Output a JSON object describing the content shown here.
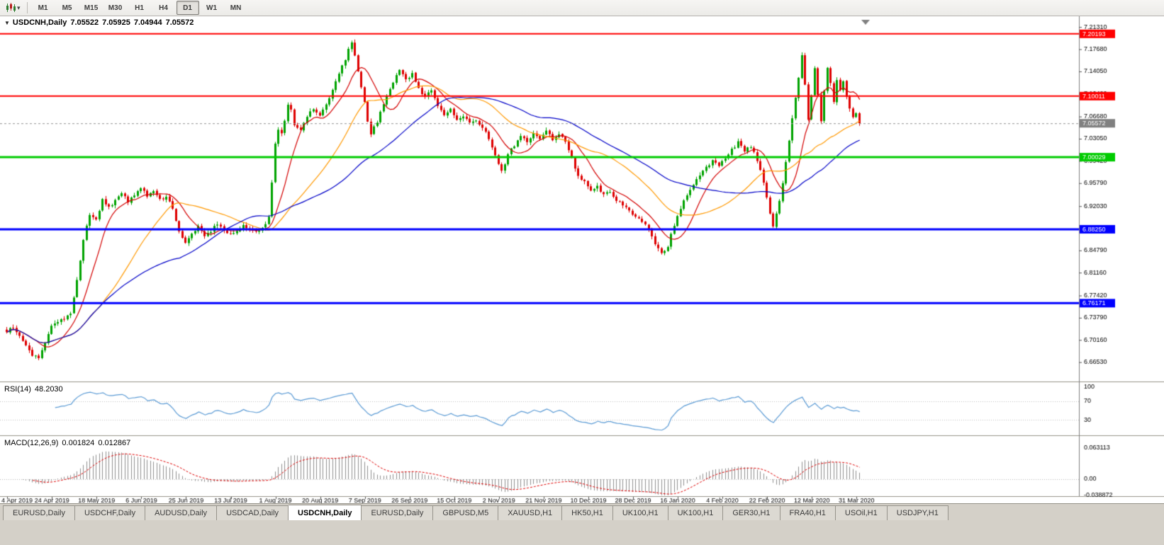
{
  "toolbar": {
    "chart_type_icon": "candlestick-chart-icon",
    "dropdown_icon": "chevron-down-icon",
    "timeframes": [
      {
        "label": "M1",
        "active": false
      },
      {
        "label": "M5",
        "active": false
      },
      {
        "label": "M15",
        "active": false
      },
      {
        "label": "M30",
        "active": false
      },
      {
        "label": "H1",
        "active": false
      },
      {
        "label": "H4",
        "active": false
      },
      {
        "label": "D1",
        "active": true
      },
      {
        "label": "W1",
        "active": false
      },
      {
        "label": "MN",
        "active": false
      }
    ]
  },
  "tabs": [
    {
      "label": "EURUSD,Daily",
      "active": false
    },
    {
      "label": "USDCHF,Daily",
      "active": false
    },
    {
      "label": "AUDUSD,Daily",
      "active": false
    },
    {
      "label": "USDCAD,Daily",
      "active": false
    },
    {
      "label": "USDCNH,Daily",
      "active": true
    },
    {
      "label": "EURUSD,Daily",
      "active": false
    },
    {
      "label": "GBPUSD,M5",
      "active": false
    },
    {
      "label": "XAUUSD,H1",
      "active": false
    },
    {
      "label": "HK50,H1",
      "active": false
    },
    {
      "label": "UK100,H1",
      "active": false
    },
    {
      "label": "UK100,H1",
      "active": false
    },
    {
      "label": "GER30,H1",
      "active": false
    },
    {
      "label": "FRA40,H1",
      "active": false
    },
    {
      "label": "USOil,H1",
      "active": false
    },
    {
      "label": "USDJPY,H1",
      "active": false
    }
  ],
  "chart_data": {
    "type": "candlestick",
    "symbol": "USDCNH",
    "timeframe": "Daily",
    "title": "USDCNH,Daily",
    "ohlc": {
      "open": "7.05522",
      "high": "7.05925",
      "low": "7.04944",
      "close": "7.05572"
    },
    "colors": {
      "bull": "#00A300",
      "bear": "#DE0000",
      "background": "#FFFFFF",
      "axis_line": "#808080",
      "axis_text": "#000000",
      "current_price_line": "#909090"
    },
    "price_axis_range": [
      7.226,
      6.636
    ],
    "y_ticks": [
      7.2131,
      7.1768,
      7.1405,
      7.1042,
      7.0668,
      7.0305,
      6.9942,
      6.9579,
      6.9203,
      6.8841,
      6.8479,
      6.8116,
      6.7742,
      6.7379,
      6.7016,
      6.6653
    ],
    "hlines": [
      {
        "price": 7.20193,
        "color": "#FF0000",
        "width": 2,
        "label": "7.20193"
      },
      {
        "price": 7.10011,
        "color": "#FF0000",
        "width": 2,
        "label": "7.10011"
      },
      {
        "price": 7.00029,
        "color": "#00CC00",
        "width": 3,
        "label": "7.00029"
      },
      {
        "price": 6.8825,
        "color": "#0000FF",
        "width": 3,
        "label": "6.88250"
      },
      {
        "price": 6.76171,
        "color": "#0000FF",
        "width": 3,
        "label": "6.76171"
      }
    ],
    "current_price": {
      "value": 7.05572,
      "label": "7.05572",
      "badge_color": "#808080"
    },
    "moving_averages": [
      {
        "period": 10,
        "color": "#D40000"
      },
      {
        "period": 30,
        "color": "#FF9900"
      },
      {
        "period": 55,
        "color": "#0000C8"
      }
    ],
    "x_labels": [
      "4 Apr 2019",
      "24 Apr 2019",
      "18 May 2019",
      "6 Jun 2019",
      "25 Jun 2019",
      "13 Jul 2019",
      "1 Aug 2019",
      "20 Aug 2019",
      "7 Sep 2019",
      "26 Sep 2019",
      "15 Oct 2019",
      "2 Nov 2019",
      "21 Nov 2019",
      "10 Dec 2019",
      "28 Dec 2019",
      "16 Jan 2020",
      "4 Feb 2020",
      "22 Feb 2020",
      "12 Mar 2020",
      "31 Mar 2020"
    ],
    "label_candle_step": 14,
    "num_candles": 268,
    "anchors": [
      [
        0,
        6.716
      ],
      [
        2,
        6.722
      ],
      [
        4,
        6.706
      ],
      [
        6,
        6.695
      ],
      [
        8,
        6.678
      ],
      [
        10,
        6.671
      ],
      [
        12,
        6.698
      ],
      [
        14,
        6.725
      ],
      [
        16,
        6.73
      ],
      [
        18,
        6.737
      ],
      [
        20,
        6.747
      ],
      [
        22,
        6.798
      ],
      [
        24,
        6.866
      ],
      [
        26,
        6.908
      ],
      [
        28,
        6.898
      ],
      [
        30,
        6.93
      ],
      [
        32,
        6.918
      ],
      [
        34,
        6.93
      ],
      [
        36,
        6.942
      ],
      [
        38,
        6.928
      ],
      [
        40,
        6.94
      ],
      [
        42,
        6.948
      ],
      [
        44,
        6.938
      ],
      [
        46,
        6.945
      ],
      [
        48,
        6.93
      ],
      [
        50,
        6.938
      ],
      [
        52,
        6.915
      ],
      [
        54,
        6.88
      ],
      [
        56,
        6.858
      ],
      [
        58,
        6.874
      ],
      [
        60,
        6.888
      ],
      [
        62,
        6.872
      ],
      [
        64,
        6.88
      ],
      [
        66,
        6.892
      ],
      [
        68,
        6.878
      ],
      [
        70,
        6.874
      ],
      [
        72,
        6.882
      ],
      [
        74,
        6.888
      ],
      [
        76,
        6.883
      ],
      [
        78,
        6.879
      ],
      [
        80,
        6.884
      ],
      [
        82,
        6.902
      ],
      [
        83,
        6.96
      ],
      [
        84,
        7.022
      ],
      [
        85,
        7.046
      ],
      [
        86,
        7.038
      ],
      [
        87,
        7.062
      ],
      [
        88,
        7.088
      ],
      [
        89,
        7.078
      ],
      [
        90,
        7.052
      ],
      [
        92,
        7.046
      ],
      [
        94,
        7.066
      ],
      [
        96,
        7.08
      ],
      [
        98,
        7.068
      ],
      [
        100,
        7.086
      ],
      [
        102,
        7.112
      ],
      [
        104,
        7.138
      ],
      [
        106,
        7.16
      ],
      [
        107,
        7.178
      ],
      [
        108,
        7.186
      ],
      [
        109,
        7.166
      ],
      [
        110,
        7.142
      ],
      [
        112,
        7.092
      ],
      [
        113,
        7.058
      ],
      [
        114,
        7.04
      ],
      [
        116,
        7.058
      ],
      [
        118,
        7.088
      ],
      [
        120,
        7.11
      ],
      [
        122,
        7.134
      ],
      [
        123,
        7.145
      ],
      [
        125,
        7.126
      ],
      [
        127,
        7.138
      ],
      [
        129,
        7.112
      ],
      [
        131,
        7.098
      ],
      [
        133,
        7.11
      ],
      [
        135,
        7.086
      ],
      [
        137,
        7.07
      ],
      [
        139,
        7.078
      ],
      [
        141,
        7.06
      ],
      [
        143,
        7.068
      ],
      [
        145,
        7.056
      ],
      [
        147,
        7.062
      ],
      [
        149,
        7.048
      ],
      [
        151,
        7.032
      ],
      [
        153,
        7.002
      ],
      [
        155,
        6.976
      ],
      [
        157,
        7.006
      ],
      [
        159,
        7.02
      ],
      [
        161,
        7.034
      ],
      [
        163,
        7.026
      ],
      [
        165,
        7.038
      ],
      [
        167,
        7.032
      ],
      [
        169,
        7.042
      ],
      [
        171,
        7.03
      ],
      [
        173,
        7.036
      ],
      [
        175,
        7.028
      ],
      [
        177,
        6.998
      ],
      [
        179,
        6.968
      ],
      [
        181,
        6.96
      ],
      [
        183,
        6.948
      ],
      [
        185,
        6.953
      ],
      [
        187,
        6.938
      ],
      [
        189,
        6.943
      ],
      [
        191,
        6.93
      ],
      [
        193,
        6.922
      ],
      [
        195,
        6.912
      ],
      [
        197,
        6.905
      ],
      [
        199,
        6.895
      ],
      [
        201,
        6.882
      ],
      [
        203,
        6.858
      ],
      [
        205,
        6.843
      ],
      [
        207,
        6.856
      ],
      [
        209,
        6.89
      ],
      [
        211,
        6.916
      ],
      [
        213,
        6.94
      ],
      [
        215,
        6.956
      ],
      [
        217,
        6.97
      ],
      [
        219,
        6.984
      ],
      [
        221,
        6.994
      ],
      [
        223,
        6.988
      ],
      [
        225,
        7.0
      ],
      [
        227,
        7.012
      ],
      [
        229,
        7.024
      ],
      [
        231,
        7.01
      ],
      [
        233,
        7.018
      ],
      [
        235,
        6.996
      ],
      [
        237,
        6.958
      ],
      [
        239,
        6.906
      ],
      [
        240,
        6.886
      ],
      [
        242,
        6.93
      ],
      [
        244,
        6.99
      ],
      [
        246,
        7.062
      ],
      [
        248,
        7.132
      ],
      [
        249,
        7.166
      ],
      [
        250,
        7.118
      ],
      [
        251,
        7.06
      ],
      [
        252,
        7.102
      ],
      [
        253,
        7.146
      ],
      [
        254,
        7.1
      ],
      [
        255,
        7.06
      ],
      [
        256,
        7.11
      ],
      [
        257,
        7.148
      ],
      [
        258,
        7.12
      ],
      [
        259,
        7.09
      ],
      [
        260,
        7.128
      ],
      [
        261,
        7.11
      ],
      [
        262,
        7.124
      ],
      [
        263,
        7.1
      ],
      [
        264,
        7.08
      ],
      [
        265,
        7.064
      ],
      [
        266,
        7.07
      ],
      [
        267,
        7.0557
      ]
    ],
    "rsi": {
      "name": "RSI(14)",
      "value": "48.2030",
      "period": 14,
      "levels": [
        100,
        70,
        30
      ],
      "color": "#5B9BD5"
    },
    "macd": {
      "name": "MACD(12,26,9)",
      "value": "0.001824",
      "signal_value": "0.012867",
      "fast": 12,
      "slow": 26,
      "signal": 9,
      "axis_labels": [
        "0.063113",
        "0.00",
        "-0.038872"
      ],
      "axis_values": [
        0.063113,
        0,
        -0.038872
      ],
      "histogram_color": "#909090",
      "signal_color": "#E00000"
    }
  }
}
